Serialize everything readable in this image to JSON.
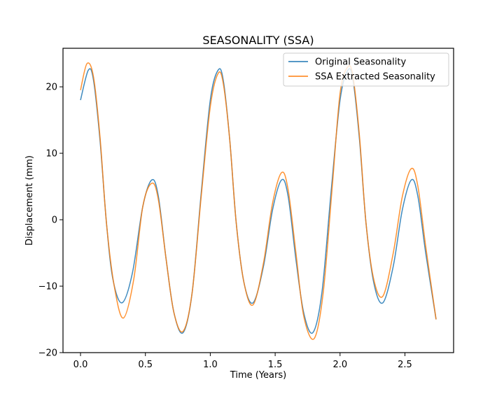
{
  "chart_data": {
    "type": "line",
    "title": "SEASONALITY (SSA)",
    "xlabel": "Time (Years)",
    "ylabel": "Displacement (mm)",
    "xlim": [
      -0.135,
      2.875
    ],
    "ylim": [
      -20,
      25.8
    ],
    "x_ticks": [
      0.0,
      0.5,
      1.0,
      1.5,
      2.0,
      2.5
    ],
    "x_tick_labels": [
      "0.0",
      "0.5",
      "1.0",
      "1.5",
      "2.0",
      "2.5"
    ],
    "y_ticks": [
      -20,
      -10,
      0,
      10,
      20
    ],
    "y_tick_labels": [
      "−20",
      "−10",
      "0",
      "10",
      "20"
    ],
    "grid": false,
    "legend_position": "top-right",
    "series": [
      {
        "name": "Original Seasonality",
        "color": "#1f77b4",
        "points": [
          [
            0.0,
            18.0
          ],
          [
            0.06,
            22.5
          ],
          [
            0.1,
            21.0
          ],
          [
            0.15,
            12.0
          ],
          [
            0.2,
            -0.5
          ],
          [
            0.25,
            -9.0
          ],
          [
            0.32,
            -12.5
          ],
          [
            0.4,
            -8.0
          ],
          [
            0.48,
            2.0
          ],
          [
            0.55,
            6.0
          ],
          [
            0.6,
            3.5
          ],
          [
            0.66,
            -6.0
          ],
          [
            0.72,
            -14.0
          ],
          [
            0.79,
            -17.0
          ],
          [
            0.86,
            -11.0
          ],
          [
            0.93,
            4.0
          ],
          [
            1.0,
            18.0
          ],
          [
            1.06,
            22.5
          ],
          [
            1.1,
            21.0
          ],
          [
            1.15,
            12.0
          ],
          [
            1.2,
            -0.5
          ],
          [
            1.26,
            -9.5
          ],
          [
            1.33,
            -12.5
          ],
          [
            1.41,
            -7.0
          ],
          [
            1.48,
            1.5
          ],
          [
            1.55,
            6.0
          ],
          [
            1.6,
            3.5
          ],
          [
            1.66,
            -6.0
          ],
          [
            1.72,
            -14.0
          ],
          [
            1.79,
            -17.0
          ],
          [
            1.86,
            -11.0
          ],
          [
            1.93,
            4.0
          ],
          [
            2.0,
            18.0
          ],
          [
            2.06,
            22.5
          ],
          [
            2.1,
            21.0
          ],
          [
            2.15,
            12.0
          ],
          [
            2.2,
            -0.5
          ],
          [
            2.26,
            -9.5
          ],
          [
            2.33,
            -12.5
          ],
          [
            2.41,
            -7.0
          ],
          [
            2.48,
            1.5
          ],
          [
            2.55,
            6.0
          ],
          [
            2.6,
            3.5
          ],
          [
            2.66,
            -5.0
          ],
          [
            2.74,
            -15.0
          ]
        ]
      },
      {
        "name": "SSA Extracted Seasonality",
        "color": "#ff7f0e",
        "points": [
          [
            0.0,
            19.5
          ],
          [
            0.05,
            23.5
          ],
          [
            0.1,
            21.5
          ],
          [
            0.15,
            12.5
          ],
          [
            0.2,
            -0.5
          ],
          [
            0.26,
            -10.0
          ],
          [
            0.33,
            -14.8
          ],
          [
            0.41,
            -9.0
          ],
          [
            0.48,
            2.0
          ],
          [
            0.55,
            5.5
          ],
          [
            0.6,
            3.0
          ],
          [
            0.66,
            -6.0
          ],
          [
            0.72,
            -14.0
          ],
          [
            0.79,
            -16.8
          ],
          [
            0.86,
            -11.0
          ],
          [
            0.93,
            3.5
          ],
          [
            1.0,
            17.0
          ],
          [
            1.06,
            22.0
          ],
          [
            1.1,
            20.5
          ],
          [
            1.15,
            12.0
          ],
          [
            1.2,
            -0.5
          ],
          [
            1.26,
            -9.5
          ],
          [
            1.33,
            -12.8
          ],
          [
            1.41,
            -6.5
          ],
          [
            1.48,
            2.5
          ],
          [
            1.55,
            7.1
          ],
          [
            1.6,
            4.5
          ],
          [
            1.66,
            -5.0
          ],
          [
            1.72,
            -14.5
          ],
          [
            1.8,
            -17.9
          ],
          [
            1.87,
            -11.0
          ],
          [
            1.94,
            5.0
          ],
          [
            2.0,
            19.0
          ],
          [
            2.06,
            23.0
          ],
          [
            2.1,
            21.5
          ],
          [
            2.15,
            12.5
          ],
          [
            2.2,
            -0.5
          ],
          [
            2.26,
            -9.0
          ],
          [
            2.33,
            -11.5
          ],
          [
            2.41,
            -5.0
          ],
          [
            2.48,
            3.5
          ],
          [
            2.55,
            7.7
          ],
          [
            2.6,
            5.0
          ],
          [
            2.66,
            -4.0
          ],
          [
            2.74,
            -15.0
          ]
        ]
      }
    ]
  }
}
